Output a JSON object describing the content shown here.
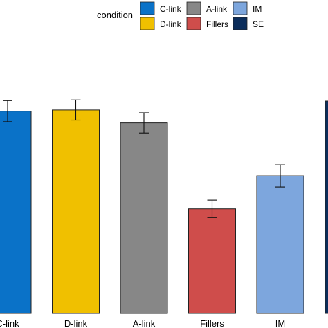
{
  "chart_data": {
    "type": "bar",
    "title": "",
    "xlabel": "",
    "ylabel": "",
    "categories": [
      "C-link",
      "D-link",
      "A-link",
      "Fillers",
      "IM"
    ],
    "values": [
      0.86,
      0.865,
      0.81,
      0.445,
      0.585
    ],
    "errors": [
      0.045,
      0.043,
      0.043,
      0.037,
      0.047
    ],
    "ylim": [
      0,
      1
    ],
    "grid": false,
    "colors": {
      "C-link": "#0a72c8",
      "D-link": "#f0c000",
      "A-link": "#878787",
      "Fillers": "#cf4d4b",
      "IM": "#7da6dd",
      "SE": "#0b2d5b"
    },
    "legend": {
      "title": "condition",
      "placement": "top",
      "entries": [
        "C-link",
        "A-link",
        "IM",
        "D-link",
        "Fillers",
        "SE"
      ]
    }
  }
}
